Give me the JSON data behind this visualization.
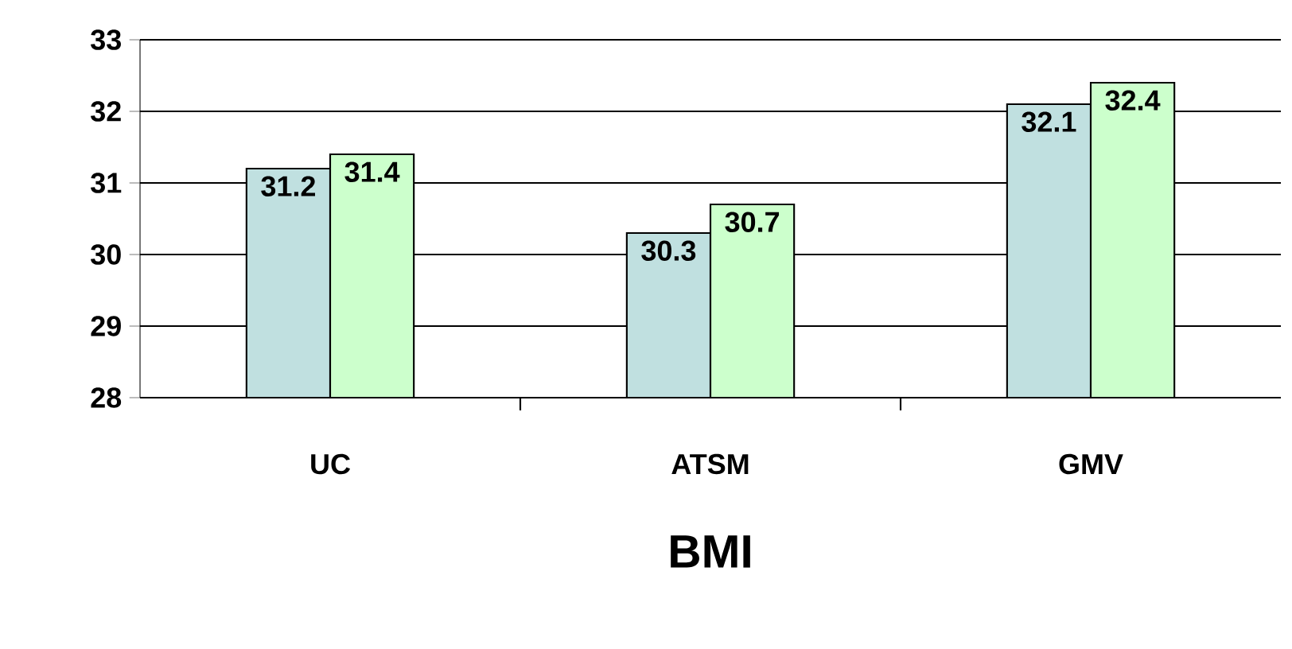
{
  "chart_data": {
    "type": "bar",
    "xlabel": "BMI",
    "categories": [
      "UC",
      "ATSM",
      "GMV"
    ],
    "series": [
      {
        "color": "#c0e0e0",
        "values": [
          31.2,
          30.3,
          32.1
        ]
      },
      {
        "color": "#ccffcc",
        "values": [
          31.4,
          30.7,
          32.4
        ]
      }
    ],
    "ylim": [
      28,
      33
    ],
    "yticks": [
      28,
      29,
      30,
      31,
      32,
      33
    ],
    "grid": "y",
    "data_labels": true
  }
}
